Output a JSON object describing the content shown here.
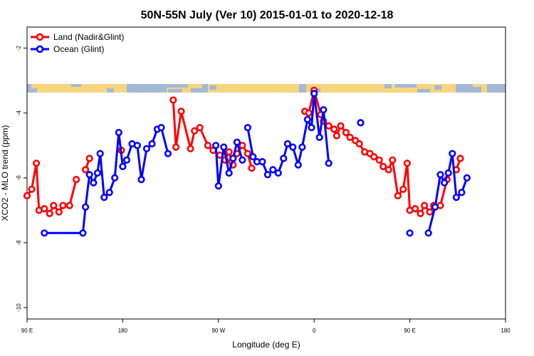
{
  "chart_data": {
    "type": "line",
    "title": "50N-55N July (Ver 10)   2015-01-01 to 2020-12-18",
    "xlabel": "Longitude (deg E)",
    "ylabel": "XCO2 - MLO trend (ppm)",
    "ylim": [
      -10.35,
      -1.35
    ],
    "xlim": [
      90,
      450
    ],
    "x_ticks": [
      {
        "value": 90,
        "label": "90 E"
      },
      {
        "value": 162,
        "label": "180"
      },
      {
        "value": 234,
        "label": "90 W"
      },
      {
        "value": 306,
        "label": "0"
      },
      {
        "value": 378,
        "label": "90 E"
      },
      {
        "value": 450,
        "label": "180"
      }
    ],
    "y_ticks": [
      -2,
      -4,
      -6,
      -8,
      -10
    ],
    "legend": {
      "position": "top-left"
    },
    "grid": false,
    "colors": {
      "land": "#ff0000",
      "ocean": "#0000ff",
      "map_land": "#f7d57e",
      "map_ocean": "#a3b9d6"
    },
    "series": [
      {
        "name": "Land (Nadir&Glint)",
        "color": "#ff0000",
        "segments": [
          [
            [
              90,
              -6.55
            ],
            [
              93.5,
              -6.35
            ],
            [
              97,
              -5.55
            ],
            [
              99,
              -7.0
            ],
            [
              103,
              -6.95
            ],
            [
              107,
              -7.1
            ],
            [
              110,
              -6.85
            ],
            [
              114,
              -7.05
            ],
            [
              117,
              -6.85
            ],
            [
              122,
              -6.85
            ],
            [
              127,
              -6.05
            ]
          ],
          [
            [
              134,
              -5.75
            ],
            [
              137,
              -5.4
            ]
          ],
          [
            [
              161,
              -5.15
            ]
          ],
          [
            [
              200,
              -3.6
            ],
            [
              202,
              -5.05
            ],
            [
              206,
              -3.95
            ],
            [
              213,
              -5.1
            ],
            [
              216,
              -4.55
            ],
            [
              220,
              -4.45
            ],
            [
              226,
              -5.0
            ],
            [
              230,
              -5.15
            ],
            [
              235,
              -5.3
            ],
            [
              239,
              -5.45
            ],
            [
              242,
              -5.2
            ],
            [
              244,
              -5.5
            ],
            [
              245,
              -5.6
            ],
            [
              248,
              -5.25
            ],
            [
              252,
              -5.0
            ],
            [
              256,
              -5.25
            ],
            [
              259,
              -5.7
            ]
          ],
          [
            [
              299,
              -3.95
            ],
            [
              302,
              -4.0
            ],
            [
              306,
              -3.3
            ],
            [
              311,
              -4.05
            ],
            [
              313,
              -4.25
            ],
            [
              317,
              -4.4
            ],
            [
              321,
              -4.5
            ],
            [
              323,
              -4.7
            ],
            [
              326,
              -4.4
            ],
            [
              330,
              -4.6
            ],
            [
              333,
              -4.75
            ],
            [
              337,
              -4.85
            ],
            [
              340,
              -4.95
            ],
            [
              344,
              -5.2
            ],
            [
              348,
              -5.25
            ],
            [
              351,
              -5.35
            ],
            [
              355,
              -5.45
            ],
            [
              358,
              -5.65
            ],
            [
              362,
              -5.75
            ],
            [
              365,
              -5.45
            ],
            [
              369,
              -6.55
            ],
            [
              373,
              -6.35
            ],
            [
              376,
              -5.55
            ],
            [
              378,
              -7.0
            ],
            [
              382,
              -6.95
            ],
            [
              386,
              -7.1
            ],
            [
              389,
              -6.85
            ],
            [
              393,
              -7.05
            ],
            [
              396,
              -6.85
            ],
            [
              401,
              -6.85
            ],
            [
              406,
              -6.05
            ]
          ],
          [
            [
              413,
              -5.75
            ],
            [
              416,
              -5.4
            ]
          ]
        ]
      },
      {
        "name": "Ocean (Glint)",
        "color": "#0000ff",
        "segments": [
          [
            [
              103,
              -7.7
            ],
            [
              132,
              -7.7
            ],
            [
              134,
              -6.9
            ],
            [
              137,
              -5.9
            ],
            [
              140,
              -6.15
            ],
            [
              143,
              -5.85
            ],
            [
              145,
              -5.25
            ],
            [
              148,
              -6.6
            ],
            [
              152,
              -6.45
            ],
            [
              156,
              -6.0
            ],
            [
              159,
              -4.6
            ],
            [
              162,
              -5.65
            ],
            [
              165,
              -5.45
            ],
            [
              169,
              -4.95
            ],
            [
              173,
              -5.0
            ],
            [
              176,
              -6.05
            ],
            [
              180,
              -5.1
            ],
            [
              184,
              -4.95
            ],
            [
              188,
              -4.5
            ],
            [
              191,
              -4.45
            ],
            [
              196,
              -5.25
            ]
          ],
          [
            [
              232,
              -5.0
            ],
            [
              234,
              -6.25
            ],
            [
              238,
              -5.05
            ],
            [
              242,
              -5.85
            ],
            [
              245,
              -5.4
            ],
            [
              248,
              -4.9
            ],
            [
              252,
              -5.45
            ]
          ],
          [
            [
              256,
              -4.45
            ],
            [
              260,
              -5.35
            ],
            [
              263,
              -5.5
            ],
            [
              267,
              -5.5
            ],
            [
              271,
              -5.9
            ],
            [
              275,
              -5.75
            ],
            [
              279,
              -5.85
            ],
            [
              283,
              -5.4
            ],
            [
              286,
              -4.95
            ],
            [
              290,
              -5.05
            ],
            [
              294,
              -5.6
            ],
            [
              297,
              -5.05
            ],
            [
              301,
              -4.2
            ],
            [
              304,
              -4.45
            ],
            [
              306,
              -3.4
            ],
            [
              310,
              -4.75
            ],
            [
              313,
              -3.9
            ],
            [
              317,
              -5.55
            ]
          ],
          [
            [
              341,
              -4.3
            ]
          ],
          [
            [
              378,
              -7.7
            ]
          ],
          [
            [
              392,
              -7.7
            ],
            [
              397,
              -6.9
            ],
            [
              401,
              -5.9
            ],
            [
              404,
              -6.15
            ],
            [
              407,
              -5.85
            ],
            [
              410,
              -5.25
            ],
            [
              413,
              -6.6
            ],
            [
              417,
              -6.45
            ],
            [
              421,
              -6.0
            ]
          ]
        ]
      }
    ]
  }
}
